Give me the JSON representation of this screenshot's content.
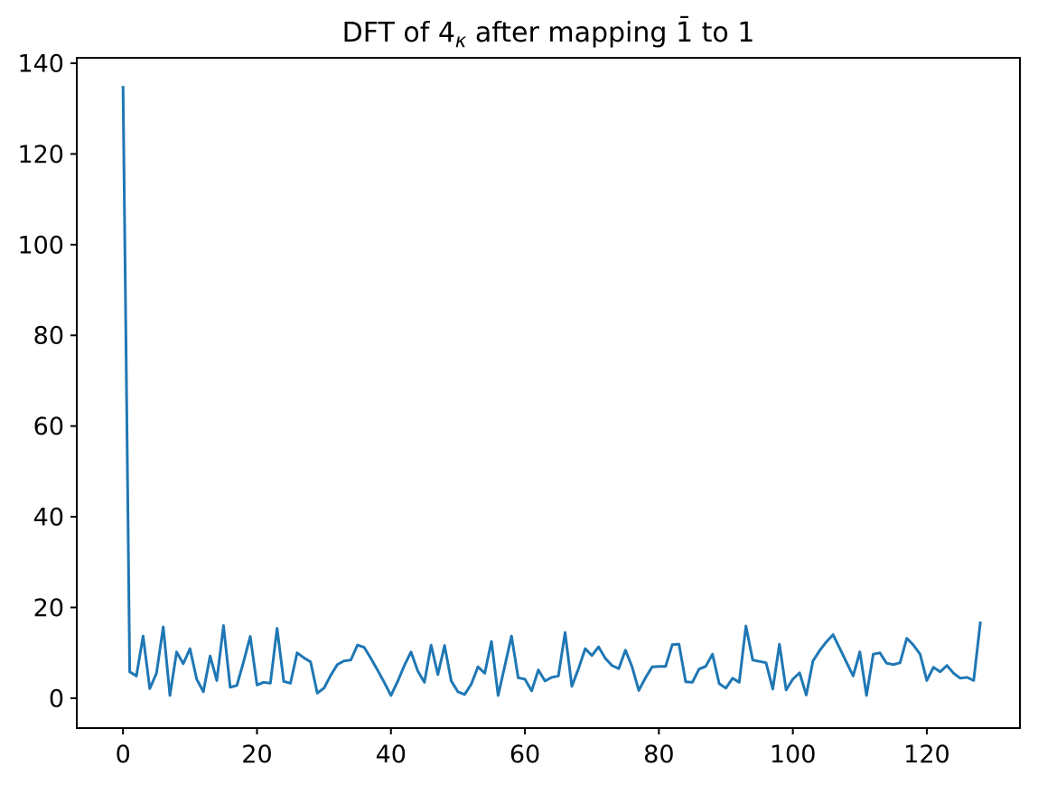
{
  "chart_data": {
    "type": "line",
    "title": "DFT of 4κ after mapping 1̄ to 1",
    "title_parts": {
      "prefix": "DFT of 4",
      "subscript": "κ",
      "suffix": " after mapping 1̄ to 1"
    },
    "xlabel": "",
    "ylabel": "",
    "legend": null,
    "grid": false,
    "x_start": 0,
    "x_step": 1,
    "x_ticks": [
      0,
      20,
      40,
      60,
      80,
      100,
      120
    ],
    "y_ticks": [
      0,
      20,
      40,
      60,
      80,
      100,
      120,
      140
    ],
    "xlim": [
      -6.9,
      133.9
    ],
    "ylim": [
      -6.6,
      141.2
    ],
    "line_color": "#1f77b4",
    "axis_color": "#000000",
    "background_color": "#ffffff",
    "values": [
      135.0,
      5.8,
      4.9,
      13.7,
      2.1,
      5.5,
      15.7,
      0.6,
      10.2,
      7.6,
      10.9,
      4.2,
      1.4,
      9.3,
      3.9,
      16.0,
      2.4,
      2.8,
      8.0,
      13.6,
      2.9,
      3.5,
      3.3,
      15.4,
      3.7,
      3.3,
      10.0,
      8.9,
      8.0,
      1.1,
      2.2,
      5.0,
      7.4,
      8.2,
      8.4,
      11.7,
      11.2,
      8.8,
      6.2,
      3.5,
      0.6,
      3.7,
      7.2,
      10.2,
      6.0,
      3.5,
      11.7,
      5.2,
      11.6,
      3.8,
      1.4,
      0.8,
      3.1,
      6.9,
      5.5,
      12.5,
      0.6,
      7.1,
      13.7,
      4.5,
      4.2,
      1.6,
      6.2,
      3.8,
      4.6,
      4.9,
      14.5,
      2.6,
      6.5,
      10.9,
      9.4,
      11.3,
      8.8,
      7.2,
      6.5,
      10.6,
      6.9,
      1.7,
      4.5,
      6.9,
      7.0,
      7.0,
      11.8,
      11.9,
      3.6,
      3.5,
      6.4,
      7.0,
      9.7,
      3.2,
      2.2,
      4.4,
      3.5,
      15.9,
      8.4,
      8.1,
      7.8,
      2.0,
      11.9,
      1.8,
      4.2,
      5.6,
      0.7,
      8.2,
      10.5,
      12.4,
      14.0,
      11.0,
      7.9,
      4.9,
      10.2,
      0.6,
      9.7,
      10.0,
      7.7,
      7.4,
      7.8,
      13.2,
      11.7,
      9.7,
      3.9,
      6.8,
      5.8,
      7.2,
      5.5,
      4.4,
      4.6,
      3.9,
      16.9
    ]
  }
}
